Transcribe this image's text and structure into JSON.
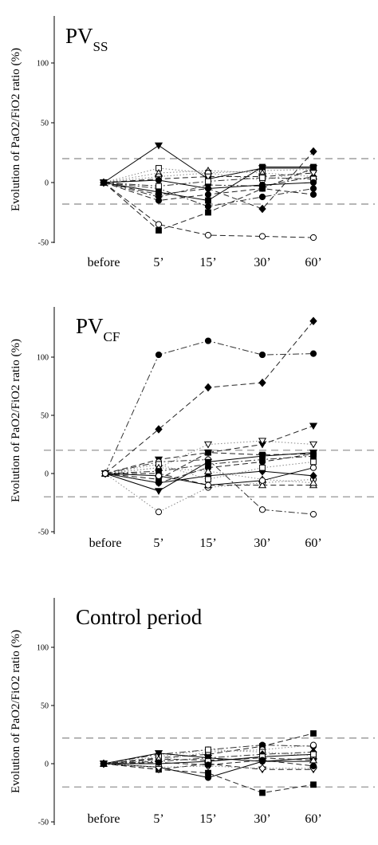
{
  "chart_data": [
    {
      "type": "line",
      "title": "PV",
      "title_subscript": "SS",
      "ylabel": "Evolution of PaO2/FiO2 ratio (%)",
      "categories": [
        "before",
        "5’",
        "15’",
        "30’",
        "60’"
      ],
      "yticks": [
        -50,
        0,
        50,
        100
      ],
      "ylim": [
        -50,
        125
      ],
      "reference_lines": [
        20,
        -18
      ],
      "series": [
        {
          "marker": "triangle-down-filled",
          "style": "solid",
          "values": [
            0,
            31,
            3,
            12,
            12
          ]
        },
        {
          "marker": "diamond-filled",
          "style": "dashed",
          "values": [
            0,
            -10,
            -5,
            -22,
            26
          ]
        },
        {
          "marker": "circle-open",
          "style": "dashed",
          "values": [
            0,
            -35,
            -44,
            -45,
            -46
          ]
        },
        {
          "marker": "square-filled",
          "style": "dashed",
          "values": [
            0,
            -40,
            -25,
            -5,
            12
          ]
        },
        {
          "marker": "square-open",
          "style": "dotted",
          "values": [
            0,
            12,
            8,
            10,
            11
          ]
        },
        {
          "marker": "circle-filled",
          "style": "dashdot",
          "values": [
            0,
            -5,
            -20,
            -12,
            -5
          ]
        },
        {
          "marker": "triangle-up-open",
          "style": "dotted",
          "values": [
            0,
            8,
            10,
            8,
            5
          ]
        },
        {
          "marker": "circle-open",
          "style": "dotted",
          "values": [
            0,
            5,
            8,
            2,
            10
          ]
        },
        {
          "marker": "square-filled",
          "style": "solid",
          "values": [
            0,
            -8,
            -15,
            13,
            13
          ]
        },
        {
          "marker": "diamond-filled",
          "style": "dashdot",
          "values": [
            0,
            -12,
            -2,
            -3,
            5
          ]
        },
        {
          "marker": "triangle-down-open",
          "style": "dashed",
          "values": [
            0,
            3,
            5,
            5,
            8
          ]
        },
        {
          "marker": "circle-filled",
          "style": "dashed",
          "values": [
            0,
            -15,
            -10,
            -5,
            -10
          ]
        },
        {
          "marker": "square-open",
          "style": "dashdot",
          "values": [
            0,
            -3,
            1,
            4,
            3
          ]
        },
        {
          "marker": "circle-filled",
          "style": "solid",
          "values": [
            0,
            2,
            -5,
            -2,
            0
          ]
        }
      ]
    },
    {
      "type": "line",
      "title": "PV",
      "title_subscript": "CF",
      "ylabel": "Evolution of PaO2/FiO2 ratio (%)",
      "categories": [
        "before",
        "5’",
        "15’",
        "30’",
        "60’"
      ],
      "yticks": [
        -50,
        0,
        50,
        100
      ],
      "ylim": [
        -50,
        140
      ],
      "reference_lines": [
        20,
        -20
      ],
      "series": [
        {
          "marker": "circle-filled",
          "style": "dashdot",
          "values": [
            0,
            102,
            114,
            102,
            103
          ]
        },
        {
          "marker": "diamond-filled",
          "style": "dashed",
          "values": [
            0,
            38,
            74,
            78,
            131
          ]
        },
        {
          "marker": "triangle-down-filled",
          "style": "dashed",
          "values": [
            0,
            12,
            18,
            25,
            41
          ]
        },
        {
          "marker": "triangle-down-open",
          "style": "dotted",
          "values": [
            0,
            5,
            25,
            28,
            25
          ]
        },
        {
          "marker": "circle-open",
          "style": "dotted",
          "values": [
            0,
            -33,
            -12,
            -8,
            -5
          ]
        },
        {
          "marker": "circle-open",
          "style": "dashdot",
          "values": [
            0,
            10,
            12,
            -31,
            -35
          ]
        },
        {
          "marker": "square-filled",
          "style": "dashed",
          "values": [
            0,
            -5,
            18,
            16,
            17
          ]
        },
        {
          "marker": "triangle-down-filled",
          "style": "solid",
          "values": [
            0,
            -15,
            10,
            15,
            18
          ]
        },
        {
          "marker": "triangle-up-open",
          "style": "dashed",
          "values": [
            0,
            0,
            -10,
            -10,
            -10
          ]
        },
        {
          "marker": "diamond-filled",
          "style": "solid",
          "values": [
            0,
            -8,
            -2,
            2,
            -2
          ]
        },
        {
          "marker": "square-open",
          "style": "dotted",
          "values": [
            0,
            8,
            -5,
            5,
            10
          ]
        },
        {
          "marker": "circle-filled",
          "style": "dashed",
          "values": [
            0,
            -8,
            5,
            10,
            17
          ]
        },
        {
          "marker": "triangle-up-open",
          "style": "dotted",
          "values": [
            0,
            5,
            2,
            -5,
            -8
          ]
        },
        {
          "marker": "square-filled",
          "style": "dashdot",
          "values": [
            0,
            2,
            8,
            12,
            15
          ]
        },
        {
          "marker": "circle-open",
          "style": "solid",
          "values": [
            0,
            -2,
            -10,
            -6,
            5
          ]
        }
      ]
    },
    {
      "type": "line",
      "title": "Control period",
      "title_subscript": "",
      "ylabel": "Evolution of PaO2/FiO2 ratio (%)",
      "categories": [
        "before",
        "5’",
        "15’",
        "30’",
        "60’"
      ],
      "yticks": [
        -50,
        0,
        50,
        100
      ],
      "ylim": [
        -50,
        125
      ],
      "reference_lines": [
        22,
        -20
      ],
      "series": [
        {
          "marker": "square-filled",
          "style": "dashed",
          "values": [
            0,
            5,
            8,
            15,
            26
          ]
        },
        {
          "marker": "square-filled",
          "style": "dashed",
          "values": [
            0,
            -5,
            -8,
            -25,
            -18
          ]
        },
        {
          "marker": "circle-filled",
          "style": "solid",
          "values": [
            0,
            -3,
            -12,
            2,
            5
          ]
        },
        {
          "marker": "circle-filled",
          "style": "dashdot",
          "values": [
            0,
            8,
            12,
            16,
            15
          ]
        },
        {
          "marker": "circle-open",
          "style": "dotted",
          "values": [
            0,
            3,
            10,
            12,
            16
          ]
        },
        {
          "marker": "square-open",
          "style": "dotted",
          "values": [
            0,
            6,
            12,
            10,
            7
          ]
        },
        {
          "marker": "triangle-down-filled",
          "style": "solid",
          "values": [
            0,
            9,
            5,
            2,
            2
          ]
        },
        {
          "marker": "triangle-down-open",
          "style": "dashed",
          "values": [
            0,
            -5,
            0,
            -5,
            -5
          ]
        },
        {
          "marker": "diamond-filled",
          "style": "dashdot",
          "values": [
            0,
            2,
            5,
            8,
            10
          ]
        },
        {
          "marker": "diamond-open",
          "style": "dotted",
          "values": [
            0,
            -3,
            -2,
            -4,
            -4
          ]
        },
        {
          "marker": "triangle-up-open",
          "style": "dashed",
          "values": [
            0,
            4,
            3,
            5,
            3
          ]
        },
        {
          "marker": "square-open",
          "style": "solid",
          "values": [
            0,
            0,
            2,
            6,
            8
          ]
        },
        {
          "marker": "circle-filled",
          "style": "dashed",
          "values": [
            0,
            1,
            -1,
            3,
            -2
          ]
        }
      ]
    }
  ]
}
